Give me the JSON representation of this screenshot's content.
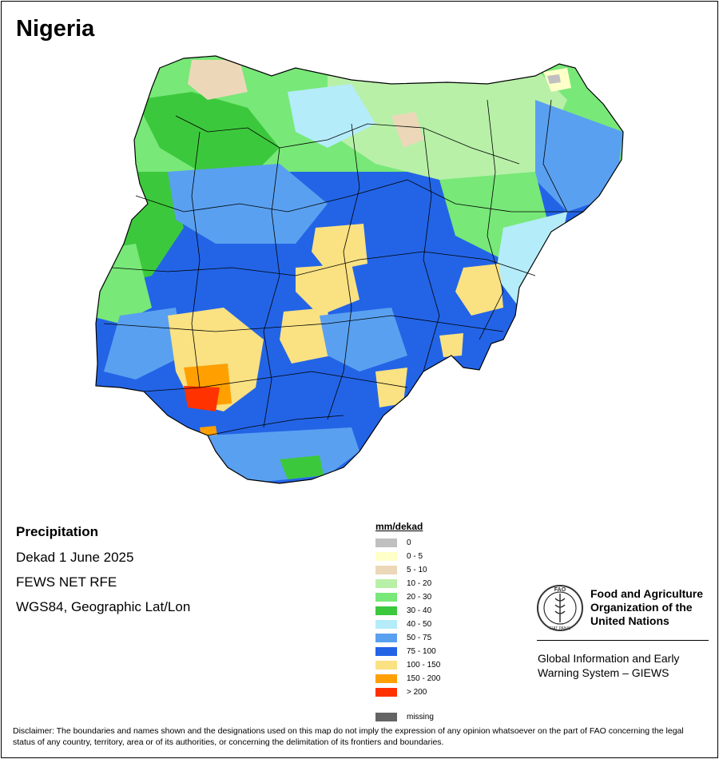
{
  "title": "Nigeria",
  "info": {
    "heading": "Precipitation",
    "period": "Dekad 1 June 2025",
    "source": "FEWS NET RFE",
    "projection": "WGS84, Geographic Lat/Lon"
  },
  "legend": {
    "title": "mm/dekad",
    "classes": [
      {
        "label": "0",
        "color": "#c0c0c0"
      },
      {
        "label": "0 - 5",
        "color": "#ffffc8"
      },
      {
        "label": "5 - 10",
        "color": "#ecd8b8"
      },
      {
        "label": "10 - 20",
        "color": "#b8f0a8"
      },
      {
        "label": "20 - 30",
        "color": "#78e878"
      },
      {
        "label": "30 - 40",
        "color": "#3cc83c"
      },
      {
        "label": "40 - 50",
        "color": "#b4ecfa"
      },
      {
        "label": "50 - 75",
        "color": "#5aa0f0"
      },
      {
        "label": "75 - 100",
        "color": "#2364e6"
      },
      {
        "label": "100 - 150",
        "color": "#fae182"
      },
      {
        "label": "150 - 200",
        "color": "#ffa000"
      },
      {
        "label": "> 200",
        "color": "#ff3200"
      }
    ],
    "missing": {
      "label": "missing",
      "color": "#646464"
    }
  },
  "organization": {
    "name_lines": [
      "Food and Agriculture",
      "Organization of the",
      "United Nations"
    ],
    "logo_letters": "FAO",
    "logo_motto": "FIAT PANIS",
    "system_lines": [
      "Global Information and Early",
      "Warning System – GIEWS"
    ]
  },
  "disclaimer": "Disclaimer: The boundaries and names shown and the designations used on this map do not imply the expression of any opinion whatsoever on the part of FAO concerning the legal status of any country, territory, area or of its authorities, or concerning the delimitation of its frontiers and boundaries."
}
